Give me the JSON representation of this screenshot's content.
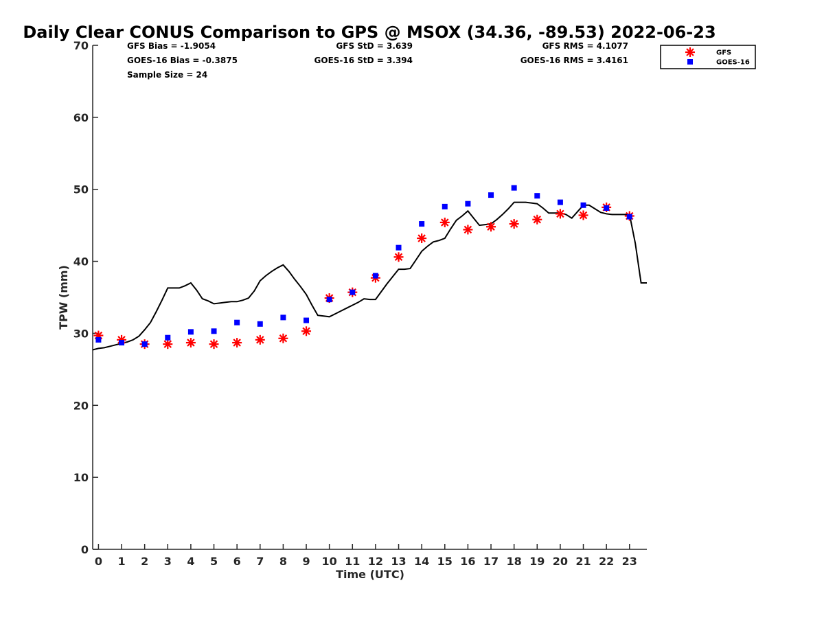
{
  "chart_data": {
    "type": "scatter",
    "title": "Daily Clear CONUS Comparison to GPS @ MSOX (34.36, -89.53) 2022-06-23",
    "xlabel": "Time (UTC)",
    "ylabel": "TPW (mm)",
    "xlim": [
      -0.25,
      23.75
    ],
    "ylim": [
      0,
      70
    ],
    "xticks": [
      0,
      1,
      2,
      3,
      4,
      5,
      6,
      7,
      8,
      9,
      10,
      11,
      12,
      13,
      14,
      15,
      16,
      17,
      18,
      19,
      20,
      21,
      22,
      23
    ],
    "yticks": [
      0,
      10,
      20,
      30,
      40,
      50,
      60,
      70
    ],
    "grid": false,
    "legend_position": "top-right",
    "stats": {
      "gfs_bias": "GFS Bias = -1.9054",
      "goes_bias": "GOES-16 Bias = -0.3875",
      "sample_size": "Sample Size = 24",
      "gfs_std": "GFS StD = 3.639",
      "goes_std": "GOES-16 StD = 3.394",
      "gfs_rms": "GFS RMS = 4.1077",
      "goes_rms": "GOES-16 RMS = 3.4161"
    },
    "series": [
      {
        "name": "GPS",
        "kind": "line",
        "color": "#000000",
        "x": [
          -0.25,
          0,
          0.25,
          0.5,
          0.75,
          1,
          1.25,
          1.5,
          1.75,
          2,
          2.25,
          2.5,
          2.75,
          3,
          3.25,
          3.5,
          3.75,
          4,
          4.25,
          4.5,
          4.75,
          5,
          5.25,
          5.5,
          5.75,
          6,
          6.25,
          6.5,
          6.75,
          7,
          7.25,
          7.5,
          7.75,
          8,
          8.25,
          8.5,
          8.75,
          9,
          9.25,
          9.5,
          9.75,
          10,
          10.25,
          10.5,
          10.75,
          11,
          11.25,
          11.5,
          11.75,
          12,
          12.25,
          12.5,
          12.75,
          13,
          13.25,
          13.5,
          13.75,
          14,
          14.25,
          14.5,
          14.75,
          15,
          15.25,
          15.5,
          15.75,
          16,
          16.25,
          16.5,
          16.75,
          17,
          17.25,
          17.5,
          17.75,
          18,
          18.25,
          18.5,
          18.75,
          19,
          19.25,
          19.5,
          19.75,
          20,
          20.25,
          20.5,
          20.75,
          21,
          21.25,
          21.5,
          21.75,
          22,
          22.25,
          22.5,
          22.75,
          23,
          23.25,
          23.5,
          23.75
        ],
        "values": [
          27.7,
          27.9,
          28.0,
          28.2,
          28.4,
          28.6,
          28.8,
          29.1,
          29.6,
          30.5,
          31.5,
          33.0,
          34.6,
          36.3,
          36.3,
          36.3,
          36.6,
          37.0,
          36.0,
          34.8,
          34.5,
          34.1,
          34.2,
          34.3,
          34.4,
          34.4,
          34.6,
          34.9,
          35.9,
          37.3,
          38.0,
          38.6,
          39.1,
          39.5,
          38.6,
          37.5,
          36.5,
          35.4,
          33.9,
          32.5,
          32.4,
          32.3,
          32.7,
          33.1,
          33.5,
          33.9,
          34.3,
          34.8,
          34.7,
          34.7,
          35.8,
          36.9,
          37.9,
          38.9,
          38.9,
          39.0,
          40.2,
          41.4,
          42.1,
          42.7,
          42.9,
          43.2,
          44.5,
          45.7,
          46.3,
          47.0,
          46.0,
          45.0,
          45.1,
          45.2,
          45.8,
          46.5,
          47.3,
          48.2,
          48.2,
          48.2,
          48.1,
          48.0,
          47.4,
          46.7,
          46.7,
          46.7,
          46.5,
          46.0,
          46.9,
          47.8,
          47.8,
          47.3,
          46.8,
          46.6,
          46.5,
          46.5,
          46.5,
          46.5,
          42.5,
          37.0,
          37.0
        ]
      },
      {
        "name": "GFS",
        "kind": "marker",
        "marker": "asterisk",
        "color": "#ff0000",
        "x": [
          0,
          1,
          2,
          3,
          4,
          5,
          6,
          7,
          8,
          9,
          10,
          11,
          12,
          13,
          14,
          15,
          16,
          17,
          18,
          19,
          20,
          21,
          22,
          23
        ],
        "values": [
          29.7,
          29.1,
          28.5,
          28.5,
          28.7,
          28.5,
          28.7,
          29.1,
          29.3,
          30.3,
          34.9,
          35.7,
          37.7,
          40.6,
          43.2,
          45.4,
          44.4,
          44.8,
          45.2,
          45.8,
          46.6,
          46.4,
          47.5,
          46.3
        ]
      },
      {
        "name": "GOES-16",
        "kind": "marker",
        "marker": "square",
        "color": "#0000ff",
        "x": [
          0,
          1,
          2,
          3,
          4,
          5,
          6,
          7,
          8,
          9,
          10,
          11,
          12,
          13,
          14,
          15,
          16,
          17,
          18,
          19,
          20,
          21,
          22,
          23
        ],
        "values": [
          29.1,
          28.7,
          28.5,
          29.4,
          30.2,
          30.3,
          31.5,
          31.3,
          32.2,
          31.8,
          34.7,
          35.7,
          38.0,
          41.9,
          45.2,
          47.6,
          48.0,
          49.2,
          50.2,
          49.1,
          48.2,
          47.8,
          47.4,
          46.2
        ]
      }
    ]
  }
}
